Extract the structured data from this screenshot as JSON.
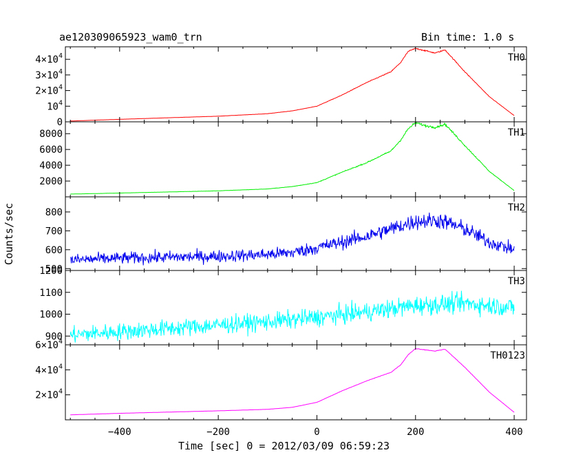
{
  "header": {
    "title": "ae120309065923_wam0_trn",
    "bin_time": "Bin time: 1.0 s"
  },
  "axes": {
    "xlabel": "Time [sec] 0 = 2012/03/09 06:59:23",
    "ylabel": "Counts/sec"
  },
  "chart_data": {
    "type": "line",
    "title": "ae120309065923_wam0_trn",
    "subtitle": "Bin time: 1.0 s",
    "xlabel": "Time [sec] 0 = 2012/03/09 06:59:23",
    "ylabel": "Counts/sec",
    "xlim": [
      -510,
      425
    ],
    "x_ticks": [
      -400,
      -200,
      0,
      200,
      400
    ],
    "x_tick_labels": [
      "−400",
      "−200",
      "0",
      "200",
      "400"
    ],
    "grid": false,
    "panels": [
      {
        "name": "TH0",
        "color": "#ff0000",
        "ylim": [
          0,
          48000
        ],
        "y_ticks": [
          0,
          10000,
          20000,
          30000,
          40000
        ],
        "y_tick_labels": [
          "0",
          "10^4",
          "2×10^4",
          "3×10^4",
          "4×10^4"
        ],
        "noise": 0.008,
        "x": [
          -500,
          -400,
          -300,
          -200,
          -100,
          -50,
          0,
          50,
          100,
          150,
          170,
          185,
          200,
          220,
          240,
          260,
          300,
          350,
          400
        ],
        "y": [
          500,
          1600,
          2600,
          3600,
          5200,
          7000,
          10000,
          17000,
          25000,
          32000,
          38000,
          45000,
          47000,
          45500,
          44000,
          46000,
          32000,
          16000,
          4000
        ]
      },
      {
        "name": "TH1",
        "color": "#00ee00",
        "ylim": [
          0,
          9500
        ],
        "y_ticks": [
          2000,
          4000,
          6000,
          8000
        ],
        "y_tick_labels": [
          "2000",
          "4000",
          "6000",
          "8000"
        ],
        "noise": 0.015,
        "x": [
          -500,
          -400,
          -300,
          -200,
          -100,
          -50,
          0,
          50,
          100,
          150,
          170,
          185,
          200,
          220,
          240,
          260,
          300,
          350,
          400
        ],
        "y": [
          350,
          480,
          620,
          760,
          1000,
          1300,
          1800,
          3100,
          4300,
          5800,
          7200,
          8600,
          9400,
          9000,
          8800,
          9200,
          6500,
          3200,
          800
        ]
      },
      {
        "name": "TH2",
        "color": "#0000ee",
        "ylim": [
          490,
          880
        ],
        "y_ticks": [
          500,
          600,
          700,
          800
        ],
        "y_tick_labels": [
          "500",
          "600",
          "700",
          "800"
        ],
        "noise": 0.055,
        "x": [
          -500,
          -400,
          -300,
          -200,
          -100,
          -50,
          0,
          50,
          100,
          150,
          200,
          250,
          300,
          350,
          400
        ],
        "y": [
          545,
          555,
          560,
          565,
          575,
          585,
          610,
          640,
          670,
          710,
          750,
          755,
          710,
          640,
          600
        ]
      },
      {
        "name": "TH3",
        "color": "#00ffff",
        "ylim": [
          860,
          1200
        ],
        "y_ticks": [
          900,
          1000,
          1100,
          1200
        ],
        "y_tick_labels": [
          "900",
          "1000",
          "1100",
          "1200"
        ],
        "noise": 0.04,
        "x": [
          -500,
          -400,
          -300,
          -200,
          -100,
          0,
          100,
          200,
          300,
          400
        ],
        "y": [
          905,
          920,
          935,
          950,
          965,
          985,
          1010,
          1040,
          1050,
          1030
        ]
      },
      {
        "name": "TH0123",
        "color": "#ff00ff",
        "ylim": [
          0,
          60000
        ],
        "y_ticks": [
          20000,
          40000,
          60000
        ],
        "y_tick_labels": [
          "2×10^4",
          "4×10^4",
          "6×10^4"
        ],
        "noise": 0.004,
        "x": [
          -500,
          -400,
          -300,
          -200,
          -100,
          -50,
          0,
          50,
          100,
          150,
          170,
          185,
          200,
          220,
          240,
          260,
          300,
          350,
          400
        ],
        "y": [
          4000,
          5200,
          6200,
          7200,
          8400,
          10000,
          14000,
          23000,
          31000,
          38000,
          44000,
          52000,
          57000,
          56000,
          55000,
          56500,
          42000,
          22000,
          6000
        ]
      }
    ]
  }
}
